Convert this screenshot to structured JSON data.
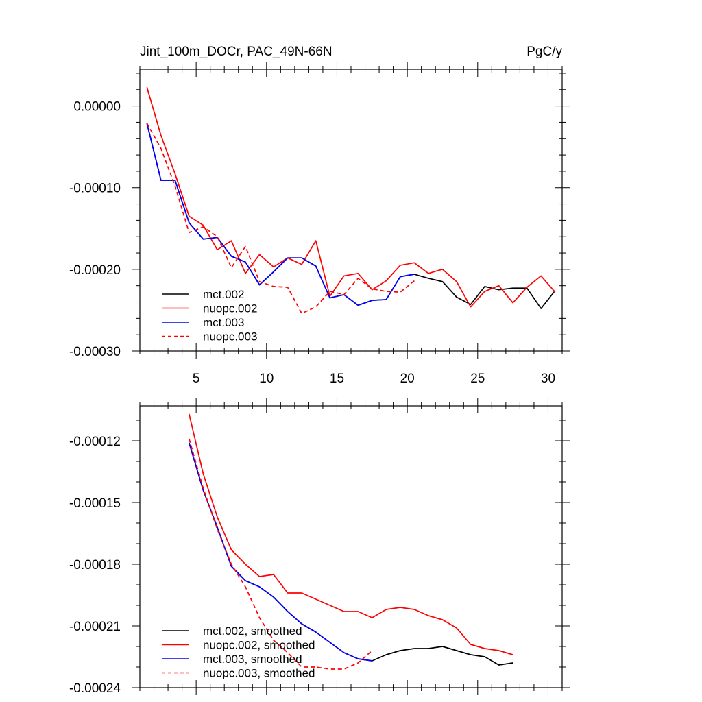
{
  "chart_data": [
    {
      "type": "line",
      "title": "Jint_100m_DOCr, PAC_49N-66N",
      "units": "PgC/y",
      "xlabel": "",
      "ylabel": "",
      "xlim": [
        1,
        31
      ],
      "ylim": [
        -0.0003,
        4.5e-05
      ],
      "xticks": [
        5,
        10,
        15,
        20,
        25,
        30
      ],
      "xtick_labels": [
        "5",
        "10",
        "15",
        "20",
        "25",
        "30"
      ],
      "yticks": [
        -0.0003,
        -0.0002,
        -0.0001,
        0.0
      ],
      "ytick_labels": [
        "-0.00030",
        "-0.00020",
        "-0.00010",
        "0.00000"
      ],
      "legend_position": "bottom-left",
      "series": [
        {
          "name": "mct.002",
          "color": "#000000",
          "dash": "solid",
          "x": [
            1.5,
            2.5,
            3.5,
            4.5,
            5.5,
            6.5,
            7.5,
            8.5,
            9.5,
            10.5,
            11.5,
            12.5,
            13.5,
            14.5,
            15.5,
            16.5,
            17.5,
            18.5,
            19.5,
            20.5,
            21.5,
            22.5,
            23.5,
            24.5,
            25.5,
            26.5,
            27.5,
            28.5,
            29.5,
            30.5
          ],
          "values": [
            -2.1e-05,
            -9.1e-05,
            -9.1e-05,
            -0.000143,
            -0.000163,
            -0.000161,
            -0.000184,
            -0.000191,
            -0.000219,
            -0.000203,
            -0.000186,
            -0.000186,
            -0.000196,
            -0.000235,
            -0.000231,
            -0.000244,
            -0.000238,
            -0.000237,
            -0.000209,
            -0.000206,
            -0.000211,
            -0.000215,
            -0.000234,
            -0.000243,
            -0.000221,
            -0.000225,
            -0.000223,
            -0.000223,
            -0.000248,
            -0.000226
          ]
        },
        {
          "name": "nuopc.002",
          "color": "#ff0000",
          "dash": "solid",
          "x": [
            1.5,
            2.5,
            3.5,
            4.5,
            5.5,
            6.5,
            7.5,
            8.5,
            9.5,
            10.5,
            11.5,
            12.5,
            13.5,
            14.5,
            15.5,
            16.5,
            17.5,
            18.5,
            19.5,
            20.5,
            21.5,
            22.5,
            23.5,
            24.5,
            25.5,
            26.5,
            27.5,
            28.5,
            29.5,
            30.5
          ],
          "values": [
            2.3e-05,
            -3.6e-05,
            -8.3e-05,
            -0.000135,
            -0.000146,
            -0.000176,
            -0.000165,
            -0.000205,
            -0.000182,
            -0.000197,
            -0.000186,
            -0.000194,
            -0.000165,
            -0.000233,
            -0.000208,
            -0.000205,
            -0.000225,
            -0.000214,
            -0.000195,
            -0.000192,
            -0.000205,
            -0.0002,
            -0.000215,
            -0.000246,
            -0.000227,
            -0.00022,
            -0.000241,
            -0.000222,
            -0.000208,
            -0.000228
          ]
        },
        {
          "name": "mct.003",
          "color": "#0000ff",
          "dash": "solid",
          "x": [
            1.5,
            2.5,
            3.5,
            4.5,
            5.5,
            6.5,
            7.5,
            8.5,
            9.5,
            10.5,
            11.5,
            12.5,
            13.5,
            14.5,
            15.5,
            16.5,
            17.5,
            18.5,
            19.5,
            20.5
          ],
          "values": [
            -2.1e-05,
            -9.1e-05,
            -9.1e-05,
            -0.000143,
            -0.000163,
            -0.000161,
            -0.000184,
            -0.000191,
            -0.000219,
            -0.000203,
            -0.000186,
            -0.000186,
            -0.000196,
            -0.000235,
            -0.000231,
            -0.000244,
            -0.000238,
            -0.000237,
            -0.000209,
            -0.000206
          ]
        },
        {
          "name": "nuopc.003",
          "color": "#ff0000",
          "dash": "dashed",
          "x": [
            1.5,
            2.5,
            3.5,
            4.5,
            5.5,
            6.5,
            7.5,
            8.5,
            9.5,
            10.5,
            11.5,
            12.5,
            13.5,
            14.5,
            15.5,
            16.5,
            17.5,
            18.5,
            19.5,
            20.5
          ],
          "values": [
            -2.1e-05,
            -5.2e-05,
            -9.8e-05,
            -0.000155,
            -0.000148,
            -0.00016,
            -0.000198,
            -0.000172,
            -0.000215,
            -0.000221,
            -0.000222,
            -0.000254,
            -0.000246,
            -0.000227,
            -0.000231,
            -0.000211,
            -0.000224,
            -0.000227,
            -0.000228,
            -0.000214
          ]
        }
      ]
    },
    {
      "type": "line",
      "title": "",
      "xlabel": "",
      "ylabel": "",
      "xlim": [
        1,
        31
      ],
      "ylim": [
        -0.00024,
        -0.000103
      ],
      "xticks": [
        5,
        10,
        15,
        20,
        25,
        30
      ],
      "xtick_labels": [],
      "yticks": [
        -0.00024,
        -0.00021,
        -0.00018,
        -0.00015,
        -0.00012
      ],
      "ytick_labels": [
        "-0.00024",
        "-0.00021",
        "-0.00018",
        "-0.00015",
        "-0.00012"
      ],
      "legend_position": "bottom-left",
      "series": [
        {
          "name": "mct.002, smoothed",
          "color": "#000000",
          "dash": "solid",
          "x": [
            4.5,
            5.5,
            6.5,
            7.5,
            8.5,
            9.5,
            10.5,
            11.5,
            12.5,
            13.5,
            14.5,
            15.5,
            16.5,
            17.5,
            18.5,
            19.5,
            20.5,
            21.5,
            22.5,
            23.5,
            24.5,
            25.5,
            26.5,
            27.5
          ],
          "values": [
            -0.000121,
            -0.000144,
            -0.000162,
            -0.000181,
            -0.000188,
            -0.000191,
            -0.000196,
            -0.000203,
            -0.000209,
            -0.000213,
            -0.000218,
            -0.000223,
            -0.000226,
            -0.000227,
            -0.000224,
            -0.000222,
            -0.000221,
            -0.000221,
            -0.00022,
            -0.000222,
            -0.000224,
            -0.000225,
            -0.000229,
            -0.000228
          ]
        },
        {
          "name": "nuopc.002, smoothed",
          "color": "#ff0000",
          "dash": "solid",
          "x": [
            4.5,
            5.5,
            6.5,
            7.5,
            8.5,
            9.5,
            10.5,
            11.5,
            12.5,
            13.5,
            14.5,
            15.5,
            16.5,
            17.5,
            18.5,
            19.5,
            20.5,
            21.5,
            22.5,
            23.5,
            24.5,
            25.5,
            26.5,
            27.5
          ],
          "values": [
            -0.000107,
            -0.000136,
            -0.000157,
            -0.000173,
            -0.00018,
            -0.000186,
            -0.000185,
            -0.000194,
            -0.000194,
            -0.000197,
            -0.0002,
            -0.000203,
            -0.000203,
            -0.000206,
            -0.000202,
            -0.000201,
            -0.000202,
            -0.000205,
            -0.000207,
            -0.000211,
            -0.000219,
            -0.000221,
            -0.000222,
            -0.000224
          ]
        },
        {
          "name": "mct.003, smoothed",
          "color": "#0000ff",
          "dash": "solid",
          "x": [
            4.5,
            5.5,
            6.5,
            7.5,
            8.5,
            9.5,
            10.5,
            11.5,
            12.5,
            13.5,
            14.5,
            15.5,
            16.5,
            17.5
          ],
          "values": [
            -0.000121,
            -0.000144,
            -0.000162,
            -0.000181,
            -0.000188,
            -0.000191,
            -0.000196,
            -0.000203,
            -0.000209,
            -0.000213,
            -0.000218,
            -0.000223,
            -0.000226,
            -0.000227
          ]
        },
        {
          "name": "nuopc.003, smoothed",
          "color": "#ff0000",
          "dash": "dashed",
          "x": [
            4.5,
            5.5,
            6.5,
            7.5,
            8.5,
            9.5,
            10.5,
            11.5,
            12.5,
            13.5,
            14.5,
            15.5,
            16.5,
            17.5
          ],
          "values": [
            -0.000119,
            -0.000143,
            -0.000163,
            -0.00018,
            -0.000191,
            -0.000206,
            -0.000217,
            -0.000223,
            -0.00023,
            -0.00023,
            -0.000231,
            -0.000231,
            -0.000228,
            -0.000222
          ]
        }
      ]
    }
  ]
}
